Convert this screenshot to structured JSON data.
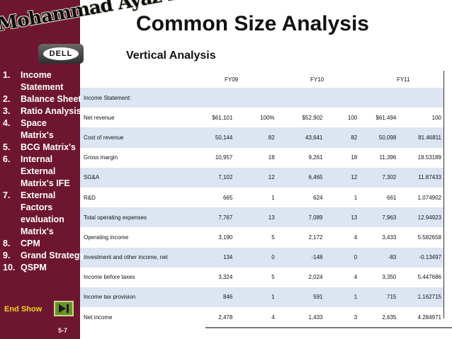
{
  "sidebar": {
    "logo_text": "Mohammad Ayaz Khan",
    "brand": "DELL",
    "menu": [
      {
        "num": "1.",
        "label": "Income\nStatement"
      },
      {
        "num": "2.",
        "label": "Balance Sheet"
      },
      {
        "num": "3.",
        "label": "Ratio Analysis"
      },
      {
        "num": "4.",
        "label": " Space\nMatrix's"
      },
      {
        "num": "5.",
        "label": "BCG Matrix's"
      },
      {
        "num": "6.",
        "label": "Internal\nExternal\nMatrix's IFE"
      },
      {
        "num": "7.",
        "label": "External\nFactors\nevaluation\nMatrix's"
      },
      {
        "num": "8.",
        "label": "CPM"
      },
      {
        "num": "9.",
        "label": "Grand Strategy"
      },
      {
        "num": "10.",
        "label": "QSPM"
      }
    ],
    "end_show_label": "End Show",
    "slide_number": "5-7",
    "colors": {
      "background": "#6e1630",
      "end_show_text": "#f3d21f",
      "end_button": "#6b8f27"
    }
  },
  "header": {
    "title": "Common Size Analysis",
    "subtitle": "Vertical Analysis"
  },
  "table": {
    "years": [
      "FY09",
      "FY10",
      "FY11"
    ],
    "rows": [
      {
        "label": "Income Statement:",
        "cells": [
          "",
          "",
          "",
          "",
          "",
          ""
        ]
      },
      {
        "label": "Net revenue",
        "cells": [
          "$61,101",
          "100%",
          "$52,902",
          "100",
          "$61,494",
          "100"
        ]
      },
      {
        "label": "Cost of revenue",
        "cells": [
          "50,144",
          "82",
          "43,641",
          "82",
          "50,098",
          "81.46811"
        ]
      },
      {
        "label": "Gross margin",
        "cells": [
          "10,957",
          "18",
          "9,261",
          "18",
          "11,396",
          "18.53189"
        ]
      },
      {
        "label": "SG&A",
        "cells": [
          "7,102",
          "12",
          "6,465",
          "12",
          "7,302",
          "11.87433"
        ]
      },
      {
        "label": "R&D",
        "cells": [
          "665",
          "1",
          "624",
          "1",
          "661",
          "1.074902"
        ]
      },
      {
        "label": "Total operating expenses",
        "cells": [
          "7,767",
          "13",
          "7,089",
          "13",
          "7,963",
          "12.94923"
        ]
      },
      {
        "label": "Operating income",
        "cells": [
          "3,190",
          "5",
          "2,172",
          "4",
          "3,433",
          "5.582658"
        ]
      },
      {
        "label": "Investment and other income, net",
        "cells": [
          "134",
          "0",
          "-148",
          "0",
          "-83",
          "-0.13497"
        ]
      },
      {
        "label": "Income before taxes",
        "cells": [
          "3,324",
          "5",
          "2,024",
          "4",
          "3,350",
          "5.447686"
        ]
      },
      {
        "label": "Income tax provision",
        "cells": [
          "846",
          "1",
          "591",
          "1",
          "715",
          "1.162715"
        ]
      },
      {
        "label": "Net income",
        "cells": [
          "2,478",
          "4",
          "1,433",
          "3",
          "2,635",
          "4.284971"
        ]
      }
    ],
    "colors": {
      "shaded_row": "#dce6f2"
    }
  }
}
